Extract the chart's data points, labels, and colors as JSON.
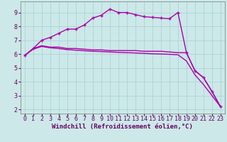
{
  "xlabel": "Windchill (Refroidissement éolien,°C)",
  "bg_color": "#cce8e8",
  "line_color": "#aa00aa",
  "xlim": [
    -0.5,
    23.5
  ],
  "ylim": [
    1.7,
    9.8
  ],
  "yticks": [
    2,
    3,
    4,
    5,
    6,
    7,
    8,
    9
  ],
  "xticks": [
    0,
    1,
    2,
    3,
    4,
    5,
    6,
    7,
    8,
    9,
    10,
    11,
    12,
    13,
    14,
    15,
    16,
    17,
    18,
    19,
    20,
    21,
    22,
    23
  ],
  "series1_x": [
    0,
    1,
    2,
    3,
    4,
    5,
    6,
    7,
    8,
    9,
    10,
    11,
    12,
    13,
    14,
    15,
    16,
    17,
    18,
    19,
    20,
    21,
    22,
    23
  ],
  "series1_y": [
    5.9,
    6.4,
    7.0,
    7.2,
    7.5,
    7.8,
    7.8,
    8.1,
    8.6,
    8.8,
    9.25,
    9.0,
    9.0,
    8.85,
    8.7,
    8.65,
    8.6,
    8.55,
    9.0,
    6.1,
    4.8,
    4.3,
    3.3,
    2.2
  ],
  "series2_x": [
    0,
    1,
    2,
    3,
    4,
    5,
    6,
    7,
    8,
    9,
    10,
    11,
    12,
    13,
    14,
    15,
    16,
    17,
    18,
    19,
    20,
    21,
    22,
    23
  ],
  "series2_y": [
    5.9,
    6.4,
    6.6,
    6.5,
    6.5,
    6.4,
    6.4,
    6.35,
    6.3,
    6.3,
    6.25,
    6.25,
    6.25,
    6.25,
    6.2,
    6.2,
    6.2,
    6.15,
    6.1,
    6.1,
    4.8,
    4.3,
    3.3,
    2.2
  ],
  "series3_x": [
    0,
    1,
    2,
    3,
    4,
    5,
    6,
    7,
    8,
    9,
    10,
    11,
    12,
    13,
    14,
    15,
    16,
    17,
    18,
    19,
    20,
    21,
    22,
    23
  ],
  "series3_y": [
    5.9,
    6.35,
    6.55,
    6.45,
    6.4,
    6.32,
    6.28,
    6.24,
    6.2,
    6.18,
    6.15,
    6.12,
    6.1,
    6.08,
    6.05,
    6.02,
    6.0,
    5.98,
    5.95,
    5.5,
    4.5,
    3.8,
    3.0,
    2.2
  ],
  "grid_color": "#aad4d4",
  "spine_color": "#777777",
  "xlabel_color": "#660066",
  "tick_color": "#660066",
  "label_fontsize": 6.0,
  "xlabel_fontsize": 6.5
}
